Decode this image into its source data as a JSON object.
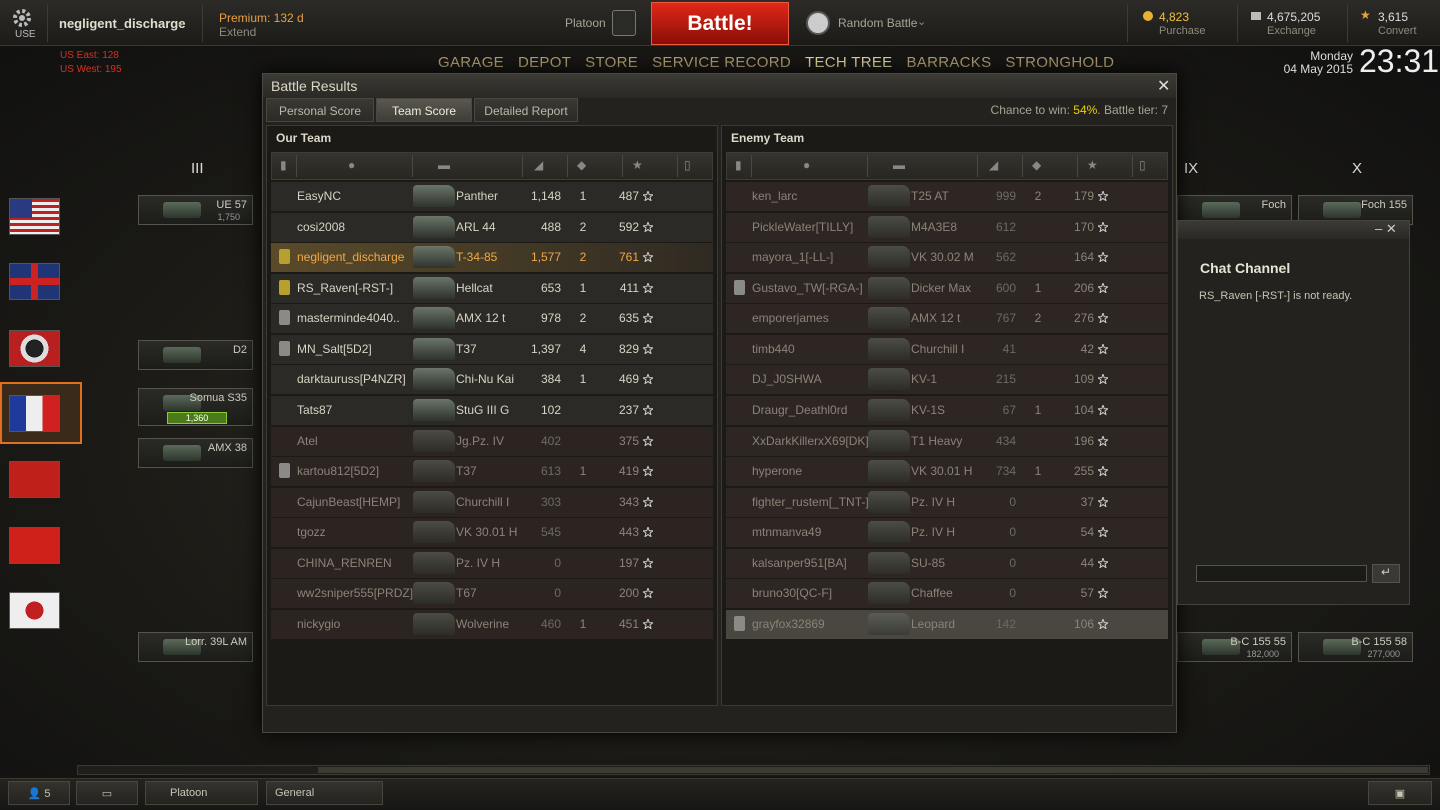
{
  "header": {
    "user_menu": "USE",
    "username": "negligent_discharge",
    "premium": "Premium: 132 d",
    "extend": "Extend",
    "platoon": "Platoon",
    "battle": "Battle!",
    "mode": "Random Battle",
    "gold": "4,823",
    "purchase": "Purchase",
    "credits": "4,675,205",
    "exchange": "Exchange",
    "free_xp": "3,615",
    "convert": "Convert"
  },
  "servers": [
    "US East: 128",
    "US West: 195"
  ],
  "nav": [
    "GARAGE",
    "DEPOT",
    "STORE",
    "SERVICE RECORD",
    "TECH TREE",
    "BARRACKS",
    "STRONGHOLD"
  ],
  "clock": {
    "day": "Monday",
    "date": "04 May 2015",
    "time": "23:31"
  },
  "tiers": {
    "left": "III",
    "right_a": "IX",
    "right_b": "X"
  },
  "tech_tree": [
    {
      "name": "UE 57",
      "xp": "1,750"
    },
    {
      "name": "D2"
    },
    {
      "name": "Somua S35",
      "xp": "1,360"
    },
    {
      "name": "AMX 38"
    },
    {
      "name": "Lorr. 39L AM"
    },
    {
      "name": "Foch"
    },
    {
      "name": "Foch 155"
    },
    {
      "name": "B-C 155 55",
      "xp": "182,000"
    },
    {
      "name": "B-C 155 58",
      "xp": "277,000"
    }
  ],
  "dialog": {
    "title": "Battle Results",
    "tabs": [
      "Personal Score",
      "Team Score",
      "Detailed Report"
    ],
    "chance_label": "Chance to win:",
    "chance_value": "54%",
    "tier": ". Battle tier: 7",
    "our_team": {
      "title": "Our Team",
      "rows": [
        {
          "player": "EasyNC",
          "tank": "Panther",
          "damage": "1,148",
          "kills": "1",
          "xp": "487",
          "alive": true
        },
        {
          "player": "cosi2008",
          "tank": "ARL 44",
          "damage": "488",
          "kills": "2",
          "xp": "592",
          "alive": true
        },
        {
          "player": "negligent_discharge",
          "tank": "T-34-85",
          "damage": "1,577",
          "kills": "2",
          "xp": "761",
          "alive": true,
          "self": true,
          "squad": "gold"
        },
        {
          "player": "RS_Raven[-RST-]",
          "tank": "Hellcat",
          "damage": "653",
          "kills": "1",
          "xp": "411",
          "alive": true,
          "squad": "gold"
        },
        {
          "player": "masterminde4040..",
          "tank": "AMX 12 t",
          "damage": "978",
          "kills": "2",
          "xp": "635",
          "alive": true,
          "squad": "silver"
        },
        {
          "player": "MN_Salt[5D2]",
          "tank": "T37",
          "damage": "1,397",
          "kills": "4",
          "xp": "829",
          "alive": true,
          "squad": "silver"
        },
        {
          "player": "darktauruss[P4NZR]",
          "tank": "Chi-Nu Kai",
          "damage": "384",
          "kills": "1",
          "xp": "469",
          "alive": true
        },
        {
          "player": "Tats87",
          "tank": "StuG III G",
          "damage": "102",
          "kills": null,
          "xp": "237",
          "alive": true
        },
        {
          "player": "Atel",
          "tank": "Jg.Pz. IV",
          "damage": "402",
          "kills": null,
          "xp": "375",
          "alive": false
        },
        {
          "player": "kartou812[5D2]",
          "tank": "T37",
          "damage": "613",
          "kills": "1",
          "xp": "419",
          "alive": false,
          "squad": "silver"
        },
        {
          "player": "CajunBeast[HEMP]",
          "tank": "Churchill I",
          "damage": "303",
          "kills": null,
          "xp": "343",
          "alive": false
        },
        {
          "player": "tgozz",
          "tank": "VK 30.01 H",
          "damage": "545",
          "kills": null,
          "xp": "443",
          "alive": false
        },
        {
          "player": "CHINA_RENREN",
          "tank": "Pz. IV H",
          "damage": "0",
          "kills": null,
          "xp": "197",
          "alive": false
        },
        {
          "player": "ww2sniper555[PRDZ]",
          "tank": "T67",
          "damage": "0",
          "kills": null,
          "xp": "200",
          "alive": false
        },
        {
          "player": "nickygio",
          "tank": "Wolverine",
          "damage": "460",
          "kills": "1",
          "xp": "451",
          "alive": false
        }
      ]
    },
    "enemy_team": {
      "title": "Enemy Team",
      "rows": [
        {
          "player": "ken_larc",
          "tank": "T25 AT",
          "damage": "999",
          "kills": "2",
          "xp": "179",
          "alive": false
        },
        {
          "player": "PickleWater[TILLY]",
          "tank": "M4A3E8",
          "damage": "612",
          "kills": null,
          "xp": "170",
          "alive": false
        },
        {
          "player": "mayora_1[-LL-]",
          "tank": "VK 30.02 M",
          "damage": "562",
          "kills": null,
          "xp": "164",
          "alive": false
        },
        {
          "player": "Gustavo_TW[-RGA-]",
          "tank": "Dicker Max",
          "damage": "600",
          "kills": "1",
          "xp": "206",
          "alive": false,
          "squad": "silver"
        },
        {
          "player": "emporerjames",
          "tank": "AMX 12 t",
          "damage": "767",
          "kills": "2",
          "xp": "276",
          "alive": false
        },
        {
          "player": "timb440",
          "tank": "Churchill I",
          "damage": "41",
          "kills": null,
          "xp": "42",
          "alive": false
        },
        {
          "player": "DJ_J0SHWA",
          "tank": "KV-1",
          "damage": "215",
          "kills": null,
          "xp": "109",
          "alive": false
        },
        {
          "player": "Draugr_Deathl0rd",
          "tank": "KV-1S",
          "damage": "67",
          "kills": "1",
          "xp": "104",
          "alive": false
        },
        {
          "player": "XxDarkKillerxX69[DK]",
          "tank": "T1 Heavy",
          "damage": "434",
          "kills": null,
          "xp": "196",
          "alive": false
        },
        {
          "player": "hyperone",
          "tank": "VK 30.01 H",
          "damage": "734",
          "kills": "1",
          "xp": "255",
          "alive": false
        },
        {
          "player": "fighter_rustem[_TNT-]",
          "tank": "Pz. IV H",
          "damage": "0",
          "kills": null,
          "xp": "37",
          "alive": false
        },
        {
          "player": "mtnmanva49",
          "tank": "Pz. IV H",
          "damage": "0",
          "kills": null,
          "xp": "54",
          "alive": false
        },
        {
          "player": "kalsanper951[BA]",
          "tank": "SU-85",
          "damage": "0",
          "kills": null,
          "xp": "44",
          "alive": false
        },
        {
          "player": "bruno30[QC-F]",
          "tank": "Chaffee",
          "damage": "0",
          "kills": null,
          "xp": "57",
          "alive": false
        },
        {
          "player": "grayfox32869",
          "tank": "Leopard",
          "damage": "142",
          "kills": null,
          "xp": "106",
          "alive": false,
          "squad": "silver",
          "hover": true
        }
      ]
    }
  },
  "chat": {
    "title": "Chat Channel",
    "message": "RS_Raven [-RST-] is not ready."
  },
  "footer": {
    "online": "5",
    "platoon": "Platoon",
    "channel": "General"
  }
}
